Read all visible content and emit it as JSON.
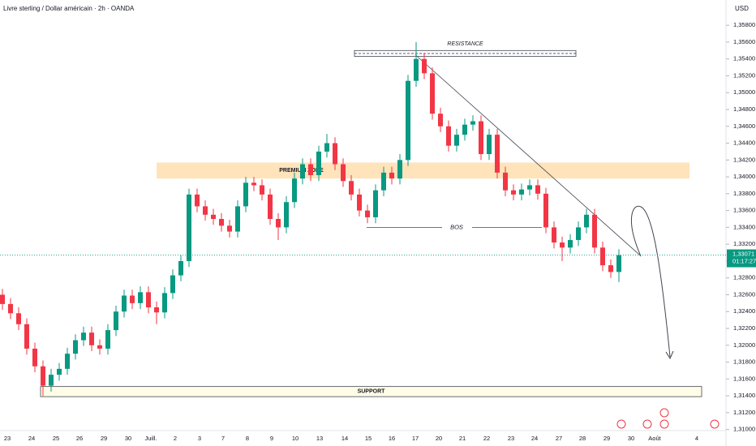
{
  "chart_data": {
    "type": "candlestick",
    "title": "Livre sterling / Dollar américain · 2h · OANDA",
    "currency": "USD",
    "up_color": "#089981",
    "down_color": "#f23645",
    "open": [
      1.326,
      1.3249,
      1.3238,
      1.3225,
      1.3196,
      1.3175,
      1.3152,
      1.3165,
      1.3172,
      1.319,
      1.3206,
      1.3215,
      1.32,
      1.3196,
      1.3218,
      1.324,
      1.3259,
      1.325,
      1.3263,
      1.3245,
      1.3239,
      1.3262,
      1.3283,
      1.33,
      1.3379,
      1.3365,
      1.3355,
      1.335,
      1.3342,
      1.3335,
      1.3365,
      1.3393,
      1.339,
      1.3379,
      1.335,
      1.334,
      1.337,
      1.3398,
      1.3415,
      1.3402,
      1.343,
      1.344,
      1.3415,
      1.3395,
      1.3379,
      1.336,
      1.3352,
      1.3384,
      1.3405,
      1.3398,
      1.342,
      1.3514,
      1.354,
      1.3523,
      1.3475,
      1.346,
      1.3437,
      1.345,
      1.3462,
      1.3466,
      1.3427,
      1.345,
      1.3405,
      1.3384,
      1.3379,
      1.3385,
      1.339,
      1.338,
      1.334,
      1.3322,
      1.3316,
      1.3325,
      1.334,
      1.3355,
      1.3316,
      1.3295,
      1.3287
    ],
    "high": [
      1.3267,
      1.3256,
      1.3245,
      1.3232,
      1.3203,
      1.3182,
      1.3172,
      1.3179,
      1.3197,
      1.3213,
      1.3222,
      1.3222,
      1.3207,
      1.3225,
      1.3247,
      1.3266,
      1.3266,
      1.327,
      1.327,
      1.3252,
      1.3269,
      1.329,
      1.3307,
      1.3386,
      1.3386,
      1.3372,
      1.3362,
      1.3357,
      1.3349,
      1.3372,
      1.34,
      1.34,
      1.3397,
      1.3386,
      1.3357,
      1.3377,
      1.3405,
      1.3422,
      1.3422,
      1.3437,
      1.3451,
      1.3447,
      1.3422,
      1.3402,
      1.3386,
      1.3367,
      1.3391,
      1.3412,
      1.3412,
      1.3427,
      1.3521,
      1.356,
      1.3547,
      1.353,
      1.3482,
      1.3467,
      1.3457,
      1.3469,
      1.3473,
      1.3473,
      1.3457,
      1.3457,
      1.3412,
      1.3391,
      1.3392,
      1.3397,
      1.3397,
      1.3387,
      1.3347,
      1.3329,
      1.3332,
      1.3347,
      1.3362,
      1.3362,
      1.3323,
      1.3302,
      1.3314
    ],
    "low": [
      1.3242,
      1.3231,
      1.3218,
      1.3189,
      1.3168,
      1.314,
      1.3145,
      1.3158,
      1.3165,
      1.3183,
      1.3199,
      1.3193,
      1.3189,
      1.3189,
      1.3211,
      1.3233,
      1.3243,
      1.3243,
      1.3238,
      1.3225,
      1.3232,
      1.3255,
      1.3276,
      1.3293,
      1.3358,
      1.3348,
      1.3343,
      1.3335,
      1.3328,
      1.3328,
      1.3358,
      1.3383,
      1.3372,
      1.3343,
      1.3325,
      1.3333,
      1.3363,
      1.3391,
      1.3395,
      1.3395,
      1.3423,
      1.3408,
      1.3388,
      1.3372,
      1.3353,
      1.3345,
      1.3345,
      1.3377,
      1.3391,
      1.3391,
      1.3413,
      1.3507,
      1.3516,
      1.3468,
      1.3453,
      1.343,
      1.343,
      1.3443,
      1.3455,
      1.342,
      1.342,
      1.3398,
      1.3377,
      1.3372,
      1.3372,
      1.3378,
      1.3373,
      1.3333,
      1.3315,
      1.33,
      1.3309,
      1.3318,
      1.3333,
      1.3309,
      1.3288,
      1.328,
      1.3275
    ],
    "close": [
      1.3249,
      1.3238,
      1.3225,
      1.3196,
      1.3175,
      1.3152,
      1.3165,
      1.3172,
      1.319,
      1.3206,
      1.3215,
      1.32,
      1.3196,
      1.3218,
      1.324,
      1.3259,
      1.325,
      1.3263,
      1.3245,
      1.3239,
      1.3262,
      1.3283,
      1.33,
      1.3379,
      1.3365,
      1.3355,
      1.335,
      1.3342,
      1.3335,
      1.3365,
      1.3393,
      1.339,
      1.3379,
      1.335,
      1.334,
      1.337,
      1.3398,
      1.3415,
      1.3402,
      1.343,
      1.344,
      1.3415,
      1.3395,
      1.3379,
      1.336,
      1.3352,
      1.3384,
      1.3405,
      1.3398,
      1.342,
      1.3514,
      1.354,
      1.3523,
      1.3475,
      1.346,
      1.3437,
      1.345,
      1.3462,
      1.3466,
      1.3427,
      1.345,
      1.3405,
      1.3384,
      1.3379,
      1.3385,
      1.339,
      1.338,
      1.334,
      1.3322,
      1.3316,
      1.3325,
      1.334,
      1.3355,
      1.3316,
      1.3295,
      1.3287,
      1.3307
    ],
    "ylim": [
      1.309,
      1.361
    ],
    "yticks": [
      {
        "value": 1.358,
        "label": "1,35800"
      },
      {
        "value": 1.356,
        "label": "1,35600"
      },
      {
        "value": 1.354,
        "label": "1,35400"
      },
      {
        "value": 1.352,
        "label": "1,35200"
      },
      {
        "value": 1.35,
        "label": "1,35000"
      },
      {
        "value": 1.348,
        "label": "1,34800"
      },
      {
        "value": 1.346,
        "label": "1,34600"
      },
      {
        "value": 1.344,
        "label": "1,34400"
      },
      {
        "value": 1.342,
        "label": "1,34200"
      },
      {
        "value": 1.34,
        "label": "1,34000"
      },
      {
        "value": 1.338,
        "label": "1,33800"
      },
      {
        "value": 1.336,
        "label": "1,33600"
      },
      {
        "value": 1.334,
        "label": "1,33400"
      },
      {
        "value": 1.332,
        "label": "1,33200"
      },
      {
        "value": 1.33,
        "label": "1,33000"
      },
      {
        "value": 1.328,
        "label": "1,32800"
      },
      {
        "value": 1.326,
        "label": "1,32600"
      },
      {
        "value": 1.324,
        "label": "1,32400"
      },
      {
        "value": 1.322,
        "label": "1,32200"
      },
      {
        "value": 1.32,
        "label": "1,32000"
      },
      {
        "value": 1.318,
        "label": "1,31800"
      },
      {
        "value": 1.316,
        "label": "1,31600"
      },
      {
        "value": 1.314,
        "label": "1,31400"
      },
      {
        "value": 1.312,
        "label": "1,31200"
      },
      {
        "value": 1.31,
        "label": "1,31000"
      }
    ],
    "x_labels": [
      "23",
      "24",
      "25",
      "26",
      "29",
      "30",
      "Juill.",
      "2",
      "3",
      "7",
      "8",
      "9",
      "10",
      "13",
      "14",
      "15",
      "16",
      "17",
      "20",
      "21",
      "22",
      "23",
      "24",
      "27",
      "28",
      "29",
      "30",
      "Août",
      "4"
    ],
    "zones": [
      {
        "label": "RESISTANCE",
        "from": 1.3543,
        "to": 1.355
      },
      {
        "label": "PREMIUM ZONE",
        "from": 1.3398,
        "to": 1.3417
      },
      {
        "label": "SUPPORT",
        "from": 1.3139,
        "to": 1.3151
      }
    ],
    "bos": {
      "label": "BOS",
      "value": 1.334
    },
    "trendline": [
      1.3545,
      1.3306
    ],
    "last_price": {
      "value": 1.33071,
      "label": "1,33071"
    },
    "countdown": "01:17:27"
  }
}
